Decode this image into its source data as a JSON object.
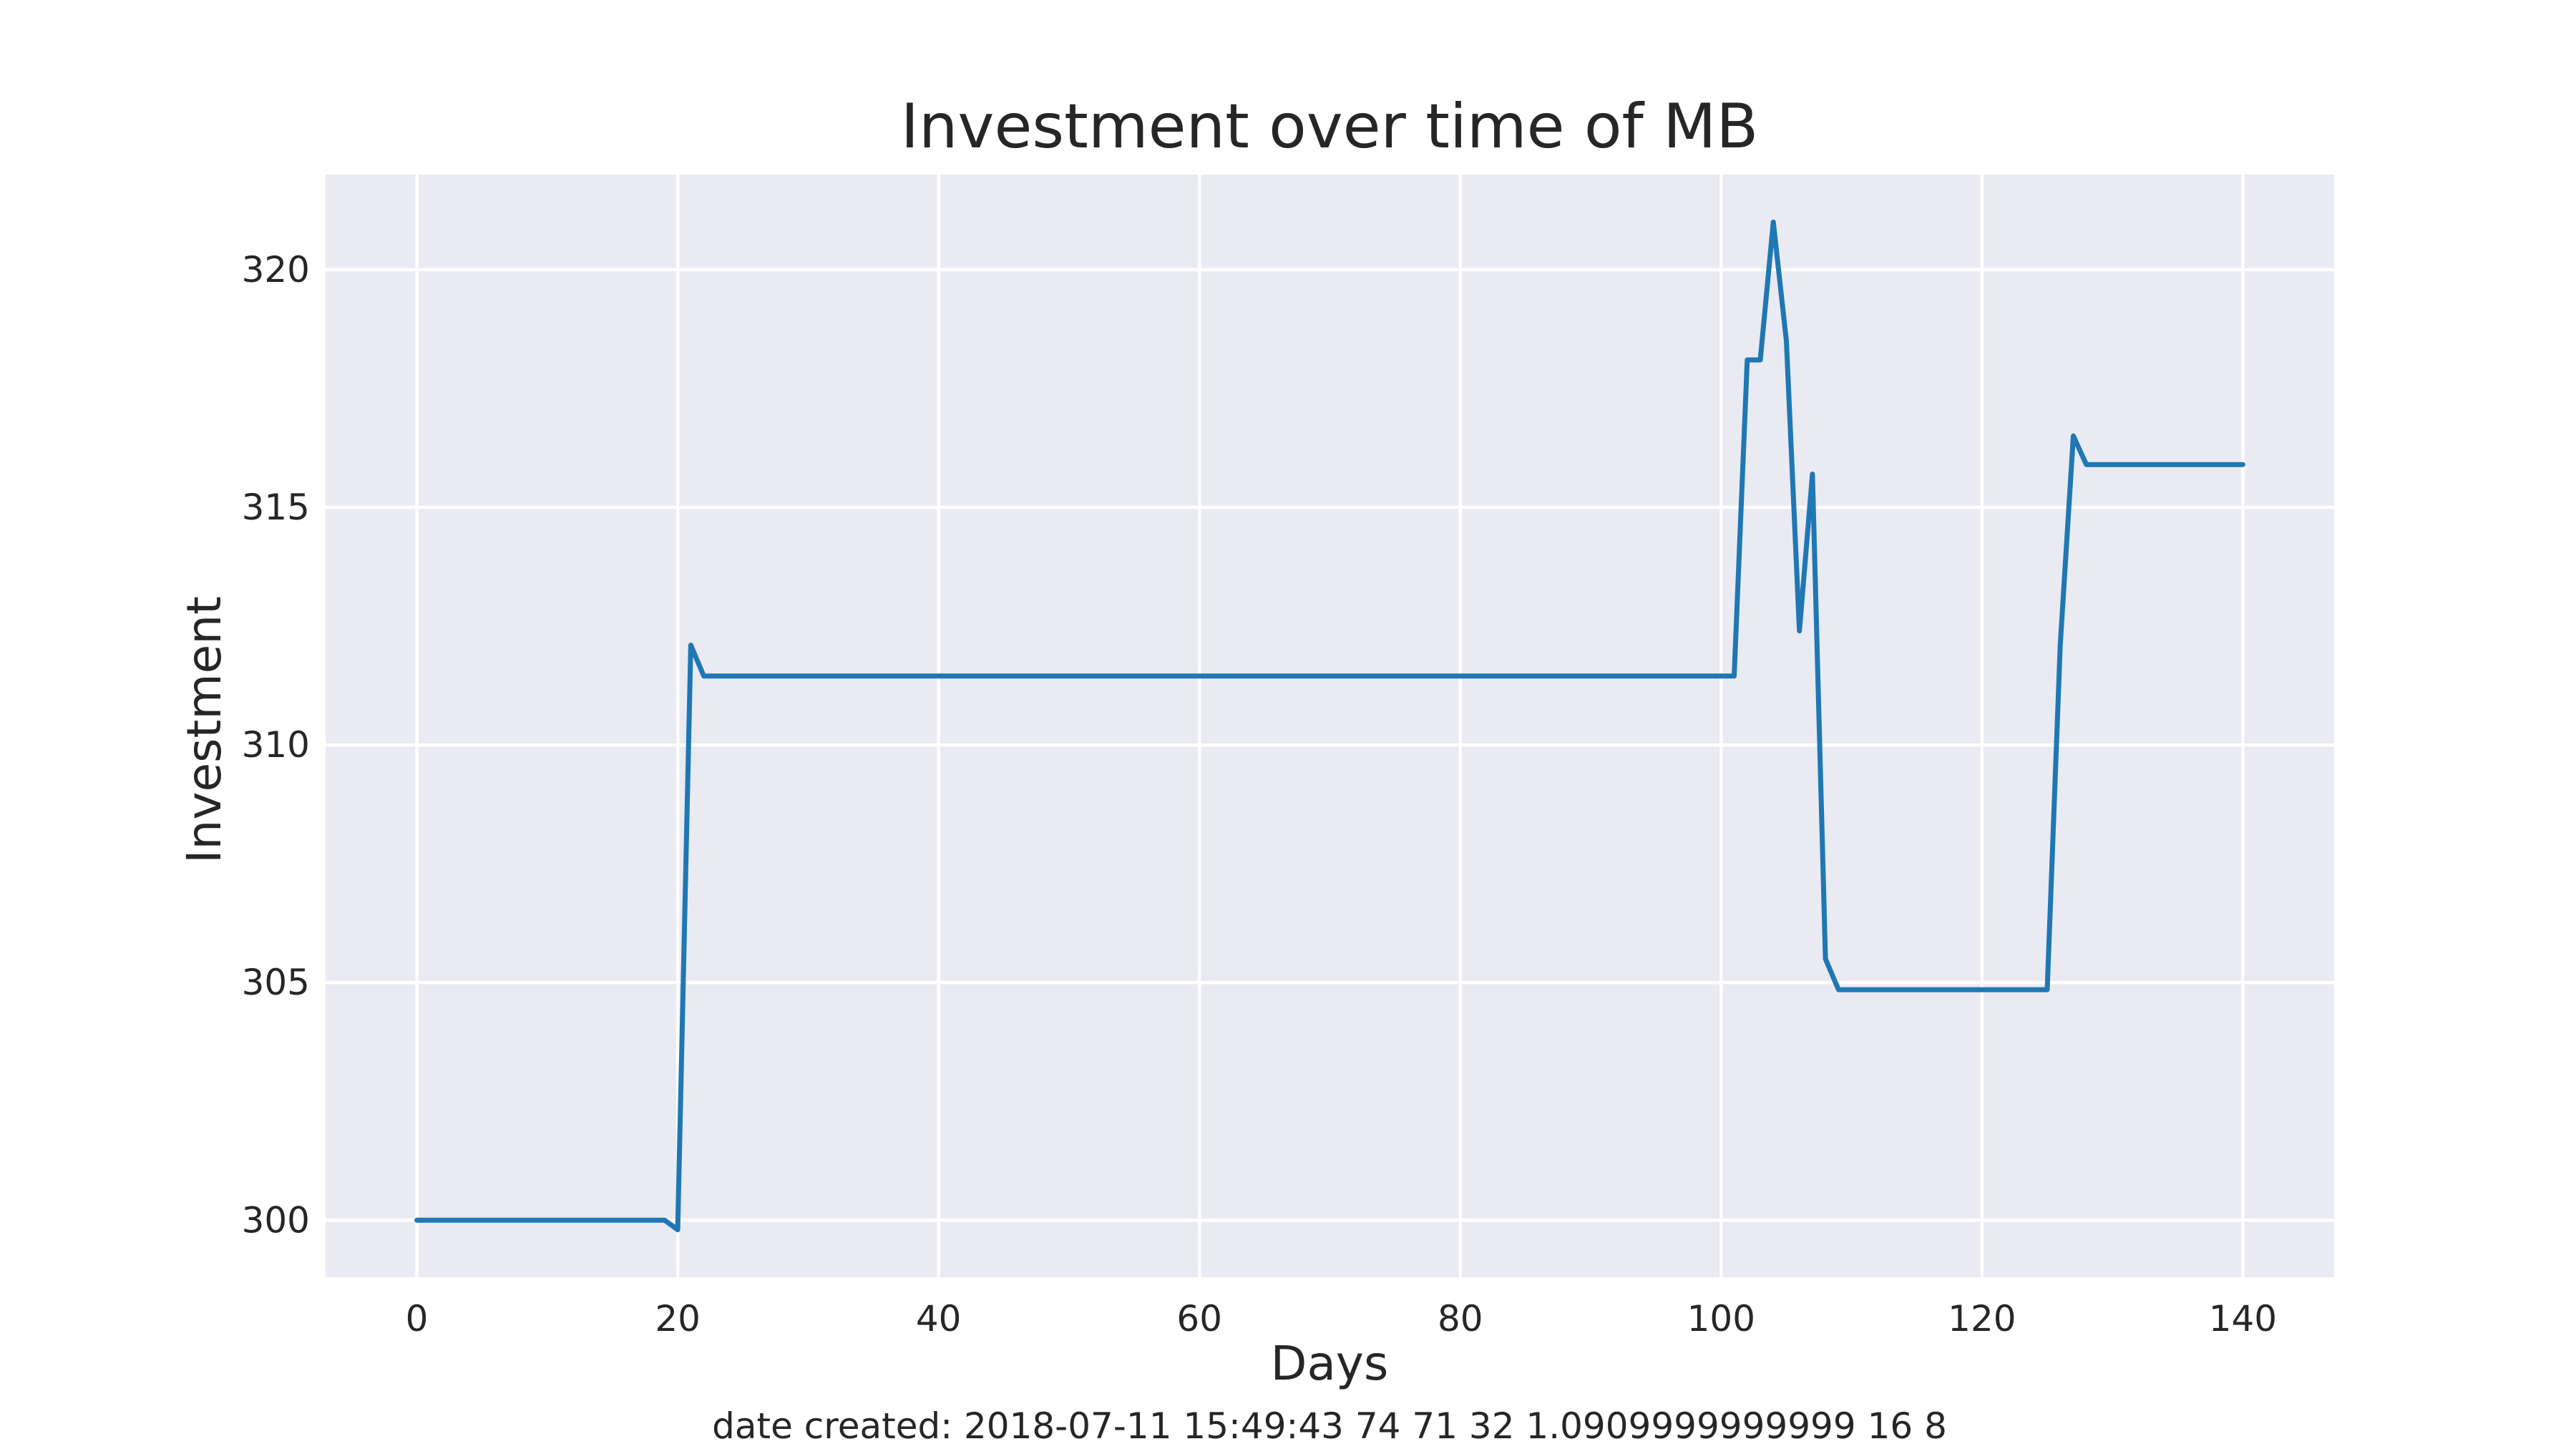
{
  "chart_data": {
    "type": "line",
    "title": "Investment over time of MB",
    "xlabel": "Days",
    "ylabel": "Investment",
    "footer": "date created: 2018-07-11 15:49:43 74 71 32 1.0909999999999 16 8",
    "xlim": [
      -7,
      147
    ],
    "ylim": [
      298.8,
      322
    ],
    "xticks": [
      0,
      20,
      40,
      60,
      80,
      100,
      120,
      140
    ],
    "yticks": [
      300,
      305,
      310,
      315,
      320
    ],
    "grid": true,
    "background": "#eaeaf2",
    "series_color": "#1f77b4",
    "series": [
      {
        "points": [
          [
            0,
            300.0
          ],
          [
            19,
            300.0
          ],
          [
            20,
            299.8
          ],
          [
            21,
            312.1
          ],
          [
            22,
            311.45
          ],
          [
            101,
            311.45
          ],
          [
            102,
            318.1
          ],
          [
            103,
            318.1
          ],
          [
            104,
            321.0
          ],
          [
            105,
            318.5
          ],
          [
            106,
            312.4
          ],
          [
            107,
            315.7
          ],
          [
            108,
            305.5
          ],
          [
            109,
            304.85
          ],
          [
            125,
            304.85
          ],
          [
            126,
            312.1
          ],
          [
            127,
            316.5
          ],
          [
            128,
            315.9
          ],
          [
            140,
            315.9
          ]
        ]
      }
    ]
  }
}
